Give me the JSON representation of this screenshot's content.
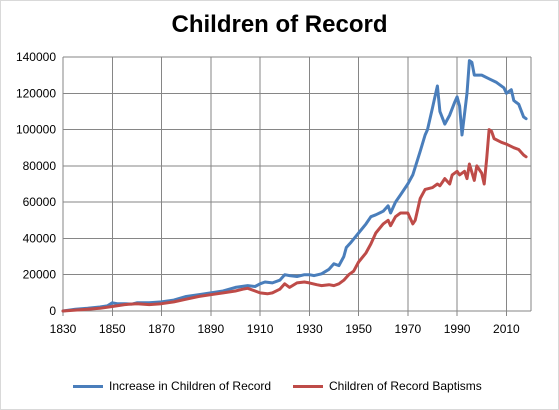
{
  "chart_data": {
    "type": "line",
    "title": "Children of Record",
    "xlabel": "",
    "ylabel": "",
    "xlim": [
      1830,
      2020
    ],
    "ylim": [
      0,
      140000
    ],
    "x_ticks": [
      1830,
      1850,
      1870,
      1890,
      1910,
      1930,
      1950,
      1970,
      1990,
      2010
    ],
    "y_ticks": [
      0,
      20000,
      40000,
      60000,
      80000,
      100000,
      120000,
      140000
    ],
    "grid": true,
    "legend_position": "bottom",
    "series": [
      {
        "name": "Increase in Children of Record",
        "color": "#4a7ebb",
        "points": [
          [
            1830,
            0
          ],
          [
            1835,
            1000
          ],
          [
            1840,
            1500
          ],
          [
            1845,
            2200
          ],
          [
            1848,
            2800
          ],
          [
            1850,
            4500
          ],
          [
            1852,
            4000
          ],
          [
            1855,
            4000
          ],
          [
            1858,
            3800
          ],
          [
            1860,
            4500
          ],
          [
            1865,
            4500
          ],
          [
            1870,
            5000
          ],
          [
            1875,
            6000
          ],
          [
            1880,
            8000
          ],
          [
            1885,
            9000
          ],
          [
            1890,
            10000
          ],
          [
            1895,
            11000
          ],
          [
            1900,
            13000
          ],
          [
            1905,
            14000
          ],
          [
            1908,
            13500
          ],
          [
            1910,
            15000
          ],
          [
            1912,
            16000
          ],
          [
            1915,
            15500
          ],
          [
            1918,
            17000
          ],
          [
            1920,
            20000
          ],
          [
            1922,
            19500
          ],
          [
            1925,
            19000
          ],
          [
            1928,
            20000
          ],
          [
            1930,
            20000
          ],
          [
            1932,
            19500
          ],
          [
            1935,
            20500
          ],
          [
            1938,
            23000
          ],
          [
            1940,
            26000
          ],
          [
            1942,
            25000
          ],
          [
            1944,
            30000
          ],
          [
            1945,
            35000
          ],
          [
            1947,
            38000
          ],
          [
            1950,
            43000
          ],
          [
            1953,
            48000
          ],
          [
            1955,
            52000
          ],
          [
            1957,
            53000
          ],
          [
            1960,
            55000
          ],
          [
            1962,
            58000
          ],
          [
            1963,
            54000
          ],
          [
            1965,
            60000
          ],
          [
            1967,
            64000
          ],
          [
            1970,
            70000
          ],
          [
            1972,
            75000
          ],
          [
            1975,
            88000
          ],
          [
            1977,
            97000
          ],
          [
            1978,
            100000
          ],
          [
            1980,
            112000
          ],
          [
            1981,
            118000
          ],
          [
            1982,
            124000
          ],
          [
            1983,
            110000
          ],
          [
            1985,
            103000
          ],
          [
            1987,
            108000
          ],
          [
            1989,
            115000
          ],
          [
            1990,
            118000
          ],
          [
            1991,
            113000
          ],
          [
            1992,
            97000
          ],
          [
            1994,
            120000
          ],
          [
            1995,
            138000
          ],
          [
            1996,
            137000
          ],
          [
            1997,
            130000
          ],
          [
            2000,
            130000
          ],
          [
            2003,
            128000
          ],
          [
            2006,
            126000
          ],
          [
            2009,
            123000
          ],
          [
            2010,
            120000
          ],
          [
            2011,
            121000
          ],
          [
            2012,
            122000
          ],
          [
            2013,
            116000
          ],
          [
            2014,
            115000
          ],
          [
            2015,
            114000
          ],
          [
            2017,
            107000
          ],
          [
            2018,
            106000
          ]
        ]
      },
      {
        "name": "Children of Record Baptisms",
        "color": "#be4b48",
        "points": [
          [
            1830,
            0
          ],
          [
            1840,
            1000
          ],
          [
            1845,
            1500
          ],
          [
            1850,
            2500
          ],
          [
            1855,
            3500
          ],
          [
            1860,
            4000
          ],
          [
            1865,
            3500
          ],
          [
            1870,
            4000
          ],
          [
            1875,
            5000
          ],
          [
            1880,
            6500
          ],
          [
            1885,
            8000
          ],
          [
            1890,
            9000
          ],
          [
            1895,
            10000
          ],
          [
            1900,
            11000
          ],
          [
            1903,
            12000
          ],
          [
            1905,
            12500
          ],
          [
            1908,
            11000
          ],
          [
            1910,
            10000
          ],
          [
            1913,
            9500
          ],
          [
            1915,
            10000
          ],
          [
            1918,
            12000
          ],
          [
            1920,
            15000
          ],
          [
            1922,
            13000
          ],
          [
            1925,
            15500
          ],
          [
            1928,
            16000
          ],
          [
            1930,
            15500
          ],
          [
            1933,
            14500
          ],
          [
            1935,
            14000
          ],
          [
            1938,
            14500
          ],
          [
            1940,
            14000
          ],
          [
            1942,
            15000
          ],
          [
            1944,
            17000
          ],
          [
            1946,
            20000
          ],
          [
            1948,
            22000
          ],
          [
            1950,
            27000
          ],
          [
            1953,
            32000
          ],
          [
            1955,
            37000
          ],
          [
            1957,
            43000
          ],
          [
            1960,
            48000
          ],
          [
            1962,
            50000
          ],
          [
            1963,
            47000
          ],
          [
            1965,
            52000
          ],
          [
            1967,
            54000
          ],
          [
            1970,
            54000
          ],
          [
            1972,
            48000
          ],
          [
            1973,
            50000
          ],
          [
            1975,
            62000
          ],
          [
            1977,
            67000
          ],
          [
            1980,
            68000
          ],
          [
            1982,
            70000
          ],
          [
            1983,
            69000
          ],
          [
            1985,
            73000
          ],
          [
            1987,
            70000
          ],
          [
            1988,
            75000
          ],
          [
            1990,
            77000
          ],
          [
            1991,
            75000
          ],
          [
            1993,
            77000
          ],
          [
            1994,
            73000
          ],
          [
            1995,
            81000
          ],
          [
            1997,
            72000
          ],
          [
            1998,
            80000
          ],
          [
            2000,
            76000
          ],
          [
            2001,
            70000
          ],
          [
            2002,
            84000
          ],
          [
            2003,
            100000
          ],
          [
            2004,
            99000
          ],
          [
            2005,
            95000
          ],
          [
            2008,
            93000
          ],
          [
            2010,
            92000
          ],
          [
            2013,
            90000
          ],
          [
            2015,
            89000
          ],
          [
            2017,
            86000
          ],
          [
            2018,
            85000
          ]
        ]
      }
    ]
  }
}
